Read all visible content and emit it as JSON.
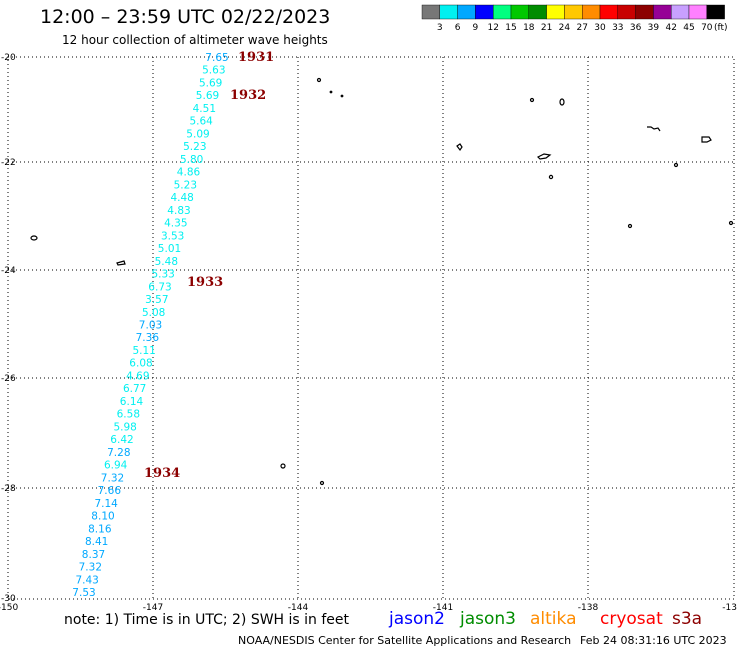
{
  "header": {
    "title": "12:00 – 23:59 UTC 02/22/2023",
    "subtitle": "12 hour collection of altimeter wave heights"
  },
  "legend": {
    "colors": [
      "#777777",
      "#00f0f0",
      "#00a8ff",
      "#0000ff",
      "#00ff80",
      "#00c800",
      "#008c00",
      "#ffff00",
      "#ffc800",
      "#ff8c00",
      "#ff0000",
      "#c80000",
      "#8c0000",
      "#960096",
      "#c8a0ff",
      "#ff80ff",
      "#000000"
    ],
    "labels": [
      "3",
      "6",
      "9",
      "12",
      "15",
      "18",
      "21",
      "24",
      "27",
      "30",
      "33",
      "36",
      "39",
      "42",
      "45",
      "70"
    ],
    "unit": "(ft)"
  },
  "map": {
    "lat_labels": [
      "-20",
      "-22",
      "-24",
      "-26",
      "-28",
      "-30"
    ],
    "lon_labels": [
      "-150",
      "-147",
      "-144",
      "-141",
      "-138",
      "-13"
    ]
  },
  "track": {
    "color_cyan": "#00f0f0",
    "color_blue": "#00a8ff",
    "heights": [
      {
        "v": "7.65",
        "c": "blue"
      },
      {
        "v": "5.63",
        "c": "cyan"
      },
      {
        "v": "5.69",
        "c": "cyan"
      },
      {
        "v": "5.69",
        "c": "cyan"
      },
      {
        "v": "4.51",
        "c": "cyan"
      },
      {
        "v": "5.64",
        "c": "cyan"
      },
      {
        "v": "5.09",
        "c": "cyan"
      },
      {
        "v": "5.23",
        "c": "cyan"
      },
      {
        "v": "5.80",
        "c": "cyan"
      },
      {
        "v": "4.86",
        "c": "cyan"
      },
      {
        "v": "5.23",
        "c": "cyan"
      },
      {
        "v": "4.48",
        "c": "cyan"
      },
      {
        "v": "4.83",
        "c": "cyan"
      },
      {
        "v": "4.35",
        "c": "cyan"
      },
      {
        "v": "3.53",
        "c": "cyan"
      },
      {
        "v": "5.01",
        "c": "cyan"
      },
      {
        "v": "5.48",
        "c": "cyan"
      },
      {
        "v": "5.33",
        "c": "cyan"
      },
      {
        "v": "6.73",
        "c": "cyan"
      },
      {
        "v": "3.57",
        "c": "cyan"
      },
      {
        "v": "5.08",
        "c": "cyan"
      },
      {
        "v": "7.03",
        "c": "blue"
      },
      {
        "v": "7.36",
        "c": "blue"
      },
      {
        "v": "5.11",
        "c": "cyan"
      },
      {
        "v": "6.08",
        "c": "cyan"
      },
      {
        "v": "4.69",
        "c": "cyan"
      },
      {
        "v": "6.77",
        "c": "cyan"
      },
      {
        "v": "6.14",
        "c": "cyan"
      },
      {
        "v": "6.58",
        "c": "cyan"
      },
      {
        "v": "5.98",
        "c": "cyan"
      },
      {
        "v": "6.42",
        "c": "cyan"
      },
      {
        "v": "7.28",
        "c": "blue"
      },
      {
        "v": "6.94",
        "c": "cyan"
      },
      {
        "v": "7.32",
        "c": "blue"
      },
      {
        "v": "7.66",
        "c": "blue"
      },
      {
        "v": "7.14",
        "c": "blue"
      },
      {
        "v": "8.10",
        "c": "blue"
      },
      {
        "v": "8.16",
        "c": "blue"
      },
      {
        "v": "8.41",
        "c": "blue"
      },
      {
        "v": "8.37",
        "c": "blue"
      },
      {
        "v": "7.32",
        "c": "blue"
      },
      {
        "v": "7.43",
        "c": "blue"
      },
      {
        "v": "7.53",
        "c": "blue"
      }
    ],
    "time_color": "#8c0000",
    "times": [
      "1931",
      "1932",
      "1933",
      "1934"
    ]
  },
  "footer": {
    "note": "note:  1) Time is in UTC;  2) SWH is in feet",
    "credit": "NOAA/NESDIS Center for Satellite Applications and Research",
    "stamp": "Feb 24 08:31:16 UTC 2023",
    "satellites": [
      {
        "name": "jason2",
        "color": "#0000ff"
      },
      {
        "name": "jason3",
        "color": "#008c00"
      },
      {
        "name": "altika",
        "color": "#ff8c00"
      },
      {
        "name": "cryosat",
        "color": "#ff0000"
      },
      {
        "name": "s3a",
        "color": "#8c0000"
      }
    ]
  }
}
